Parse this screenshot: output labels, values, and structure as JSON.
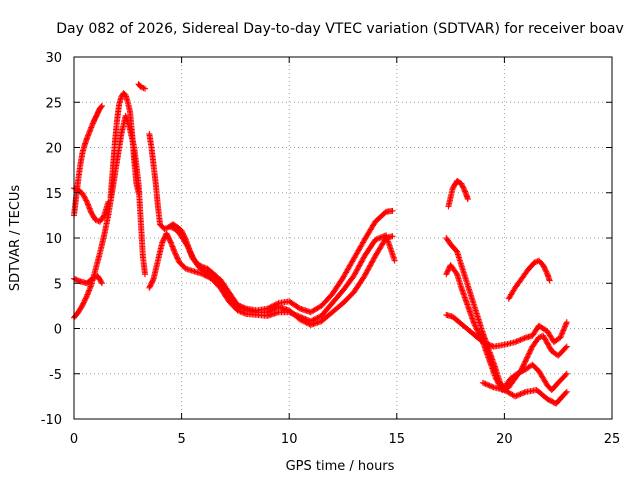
{
  "chart_data": {
    "type": "scatter",
    "title": "Day 082 of 2026, Sidereal Day-to-day VTEC variation (SDTVAR) for receiver boav",
    "xlabel": "GPS time / hours",
    "ylabel": "SDTVAR / TECUs",
    "xlim": [
      0,
      25
    ],
    "ylim": [
      -10,
      30
    ],
    "xticks": [
      0,
      5,
      10,
      15,
      20,
      25
    ],
    "yticks": [
      -10,
      -5,
      0,
      5,
      10,
      15,
      20,
      25,
      30
    ],
    "xtick_labels": [
      "0",
      "5",
      "10",
      "15",
      "20",
      "25"
    ],
    "ytick_labels": [
      "-10",
      "-5",
      "0",
      "5",
      "10",
      "15",
      "20",
      "25",
      "30"
    ],
    "grid": true,
    "marker": "+",
    "color": "#ff0000",
    "series": [
      {
        "name": "track-1",
        "points": [
          [
            0.0,
            12.5
          ],
          [
            0.1,
            14.5
          ],
          [
            0.2,
            16.5
          ],
          [
            0.3,
            18.2
          ],
          [
            0.4,
            19.5
          ],
          [
            0.5,
            20.3
          ],
          [
            0.6,
            21.0
          ],
          [
            0.7,
            21.6
          ],
          [
            0.8,
            22.2
          ],
          [
            0.9,
            22.8
          ],
          [
            1.0,
            23.3
          ],
          [
            1.1,
            23.8
          ],
          [
            1.2,
            24.3
          ],
          [
            1.3,
            24.6
          ]
        ]
      },
      {
        "name": "track-2",
        "points": [
          [
            0.0,
            15.5
          ],
          [
            0.2,
            15.3
          ],
          [
            0.4,
            14.9
          ],
          [
            0.6,
            14.0
          ],
          [
            0.8,
            12.8
          ],
          [
            1.0,
            12.0
          ],
          [
            1.2,
            11.8
          ],
          [
            1.4,
            12.5
          ],
          [
            1.6,
            14.0
          ]
        ]
      },
      {
        "name": "track-3",
        "points": [
          [
            0.0,
            1.2
          ],
          [
            0.2,
            1.8
          ],
          [
            0.4,
            2.6
          ],
          [
            0.6,
            3.6
          ],
          [
            0.8,
            4.8
          ],
          [
            1.0,
            6.5
          ],
          [
            1.2,
            8.3
          ],
          [
            1.4,
            10.3
          ],
          [
            1.6,
            12.6
          ],
          [
            1.8,
            15.5
          ],
          [
            2.0,
            18.5
          ],
          [
            2.2,
            21.5
          ],
          [
            2.4,
            23.5
          ],
          [
            2.6,
            22.0
          ],
          [
            2.8,
            20.0
          ],
          [
            3.0,
            16.0
          ],
          [
            3.1,
            12.0
          ],
          [
            3.2,
            8.0
          ],
          [
            3.3,
            6.0
          ]
        ]
      },
      {
        "name": "track-4",
        "points": [
          [
            0.0,
            5.5
          ],
          [
            0.3,
            5.2
          ],
          [
            0.6,
            5.0
          ],
          [
            0.9,
            5.6
          ],
          [
            1.1,
            5.8
          ],
          [
            1.3,
            5.0
          ]
        ]
      },
      {
        "name": "track-5",
        "points": [
          [
            1.7,
            14.5
          ],
          [
            1.8,
            17.5
          ],
          [
            1.9,
            20.5
          ],
          [
            2.0,
            23.0
          ],
          [
            2.1,
            24.8
          ],
          [
            2.2,
            25.6
          ],
          [
            2.3,
            26.0
          ],
          [
            2.4,
            25.8
          ],
          [
            2.5,
            25.0
          ],
          [
            2.6,
            24.0
          ],
          [
            2.7,
            21.5
          ],
          [
            2.8,
            18.5
          ],
          [
            2.9,
            16.0
          ],
          [
            3.0,
            15.0
          ]
        ]
      },
      {
        "name": "track-6",
        "points": [
          [
            3.0,
            27.0
          ],
          [
            3.1,
            26.7
          ],
          [
            3.3,
            26.5
          ]
        ]
      },
      {
        "name": "track-7",
        "points": [
          [
            3.5,
            21.5
          ],
          [
            3.6,
            20.0
          ],
          [
            3.7,
            18.0
          ],
          [
            3.8,
            16.0
          ],
          [
            3.9,
            13.5
          ],
          [
            4.0,
            11.5
          ],
          [
            4.2,
            11.0
          ],
          [
            4.4,
            11.2
          ],
          [
            4.6,
            11.5
          ],
          [
            4.8,
            11.2
          ],
          [
            5.0,
            10.8
          ],
          [
            5.2,
            9.8
          ],
          [
            5.4,
            8.5
          ],
          [
            5.6,
            7.5
          ],
          [
            5.8,
            6.8
          ],
          [
            6.0,
            6.4
          ],
          [
            6.4,
            6.0
          ],
          [
            6.8,
            5.4
          ],
          [
            7.2,
            4.0
          ],
          [
            7.6,
            2.6
          ],
          [
            8.0,
            2.2
          ],
          [
            8.5,
            2.0
          ],
          [
            9.0,
            2.2
          ],
          [
            9.5,
            2.8
          ],
          [
            10.0,
            3.0
          ],
          [
            10.5,
            2.2
          ],
          [
            11.0,
            1.8
          ],
          [
            11.5,
            2.5
          ],
          [
            12.0,
            3.8
          ],
          [
            12.5,
            5.6
          ],
          [
            13.0,
            7.7
          ],
          [
            13.5,
            9.8
          ],
          [
            14.0,
            11.8
          ],
          [
            14.5,
            12.9
          ],
          [
            14.8,
            13.0
          ]
        ]
      },
      {
        "name": "track-8",
        "points": [
          [
            3.5,
            4.5
          ],
          [
            3.7,
            5.5
          ],
          [
            3.9,
            7.5
          ],
          [
            4.1,
            9.5
          ],
          [
            4.3,
            10.5
          ],
          [
            4.5,
            9.5
          ],
          [
            4.7,
            8.3
          ],
          [
            4.9,
            7.3
          ],
          [
            5.2,
            6.6
          ],
          [
            5.6,
            6.3
          ],
          [
            6.0,
            6.0
          ],
          [
            6.4,
            5.5
          ],
          [
            6.8,
            4.5
          ],
          [
            7.2,
            3.0
          ],
          [
            7.6,
            2.0
          ],
          [
            8.0,
            1.6
          ],
          [
            8.5,
            1.5
          ],
          [
            9.0,
            1.4
          ],
          [
            9.5,
            1.8
          ],
          [
            10.0,
            1.8
          ],
          [
            10.5,
            1.3
          ],
          [
            11.0,
            0.8
          ],
          [
            11.5,
            1.4
          ],
          [
            12.0,
            2.8
          ],
          [
            12.5,
            4.2
          ],
          [
            13.0,
            5.8
          ],
          [
            13.5,
            8.0
          ],
          [
            14.0,
            9.8
          ],
          [
            14.5,
            10.3
          ],
          [
            14.9,
            7.5
          ]
        ]
      },
      {
        "name": "track-9",
        "points": [
          [
            4.5,
            11.2
          ],
          [
            4.7,
            11.0
          ],
          [
            4.9,
            10.5
          ],
          [
            5.1,
            9.8
          ],
          [
            5.3,
            9.0
          ],
          [
            5.5,
            7.8
          ],
          [
            5.8,
            7.0
          ],
          [
            6.2,
            6.6
          ],
          [
            6.6,
            5.8
          ],
          [
            7.0,
            4.0
          ],
          [
            7.5,
            2.6
          ],
          [
            8.0,
            2.1
          ],
          [
            8.5,
            1.8
          ],
          [
            9.0,
            1.8
          ],
          [
            9.5,
            2.4
          ],
          [
            10.0,
            2.0
          ],
          [
            10.5,
            1.0
          ],
          [
            11.0,
            0.4
          ],
          [
            11.5,
            0.8
          ],
          [
            12.0,
            1.8
          ],
          [
            12.5,
            2.8
          ],
          [
            13.0,
            4.0
          ],
          [
            13.5,
            5.8
          ],
          [
            14.0,
            8.0
          ],
          [
            14.5,
            10.0
          ],
          [
            14.8,
            10.2
          ]
        ]
      },
      {
        "name": "track-10",
        "points": [
          [
            17.4,
            13.5
          ],
          [
            17.6,
            15.5
          ],
          [
            17.8,
            16.3
          ],
          [
            18.0,
            16.0
          ],
          [
            18.2,
            15.0
          ],
          [
            18.3,
            14.3
          ]
        ]
      },
      {
        "name": "track-11",
        "points": [
          [
            17.3,
            10.0
          ],
          [
            17.5,
            9.3
          ],
          [
            17.8,
            8.5
          ],
          [
            18.0,
            7.0
          ],
          [
            18.2,
            5.5
          ],
          [
            18.4,
            4.0
          ],
          [
            18.6,
            2.5
          ],
          [
            18.8,
            1.0
          ],
          [
            19.0,
            -0.5
          ],
          [
            19.3,
            -2.5
          ],
          [
            19.6,
            -4.5
          ],
          [
            19.8,
            -6.0
          ],
          [
            20.0,
            -6.5
          ],
          [
            20.3,
            -5.5
          ],
          [
            20.6,
            -5.0
          ],
          [
            21.0,
            -4.5
          ],
          [
            21.3,
            -4.0
          ],
          [
            21.6,
            -4.7
          ],
          [
            22.0,
            -6.3
          ],
          [
            22.2,
            -6.8
          ],
          [
            22.5,
            -6.0
          ],
          [
            22.9,
            -5.0
          ]
        ]
      },
      {
        "name": "track-12",
        "points": [
          [
            17.3,
            6.0
          ],
          [
            17.5,
            7.0
          ],
          [
            17.8,
            6.0
          ],
          [
            18.0,
            4.5
          ],
          [
            18.3,
            2.5
          ],
          [
            18.6,
            0.5
          ],
          [
            19.0,
            -1.5
          ],
          [
            19.3,
            -3.5
          ],
          [
            19.6,
            -5.5
          ],
          [
            19.9,
            -6.8
          ],
          [
            20.2,
            -6.5
          ],
          [
            20.5,
            -5.5
          ],
          [
            20.8,
            -4.5
          ],
          [
            21.0,
            -3.5
          ],
          [
            21.3,
            -2.0
          ],
          [
            21.6,
            -1.0
          ],
          [
            21.8,
            -0.8
          ],
          [
            22.2,
            -2.5
          ],
          [
            22.5,
            -3.0
          ],
          [
            22.9,
            -2.0
          ]
        ]
      },
      {
        "name": "track-13",
        "points": [
          [
            17.3,
            1.5
          ],
          [
            17.6,
            1.3
          ],
          [
            18.0,
            0.5
          ],
          [
            18.5,
            -0.5
          ],
          [
            19.0,
            -1.5
          ],
          [
            19.5,
            -2.0
          ],
          [
            20.0,
            -1.8
          ],
          [
            20.5,
            -1.5
          ],
          [
            21.0,
            -1.0
          ],
          [
            21.3,
            -0.8
          ],
          [
            21.6,
            0.3
          ],
          [
            22.0,
            -0.3
          ],
          [
            22.3,
            -1.5
          ],
          [
            22.6,
            -1.0
          ],
          [
            22.9,
            0.7
          ]
        ]
      },
      {
        "name": "track-14",
        "points": [
          [
            19.0,
            -6.0
          ],
          [
            19.5,
            -6.5
          ],
          [
            20.0,
            -6.8
          ],
          [
            20.5,
            -7.5
          ],
          [
            21.0,
            -7.0
          ],
          [
            21.5,
            -6.8
          ],
          [
            22.0,
            -7.8
          ],
          [
            22.4,
            -8.3
          ],
          [
            22.7,
            -7.5
          ],
          [
            22.9,
            -7.0
          ]
        ]
      },
      {
        "name": "track-15",
        "points": [
          [
            20.2,
            3.3
          ],
          [
            20.5,
            4.5
          ],
          [
            20.8,
            5.5
          ],
          [
            21.1,
            6.5
          ],
          [
            21.4,
            7.3
          ],
          [
            21.6,
            7.5
          ],
          [
            21.8,
            7.0
          ],
          [
            22.0,
            6.0
          ],
          [
            22.1,
            5.3
          ]
        ]
      }
    ]
  }
}
